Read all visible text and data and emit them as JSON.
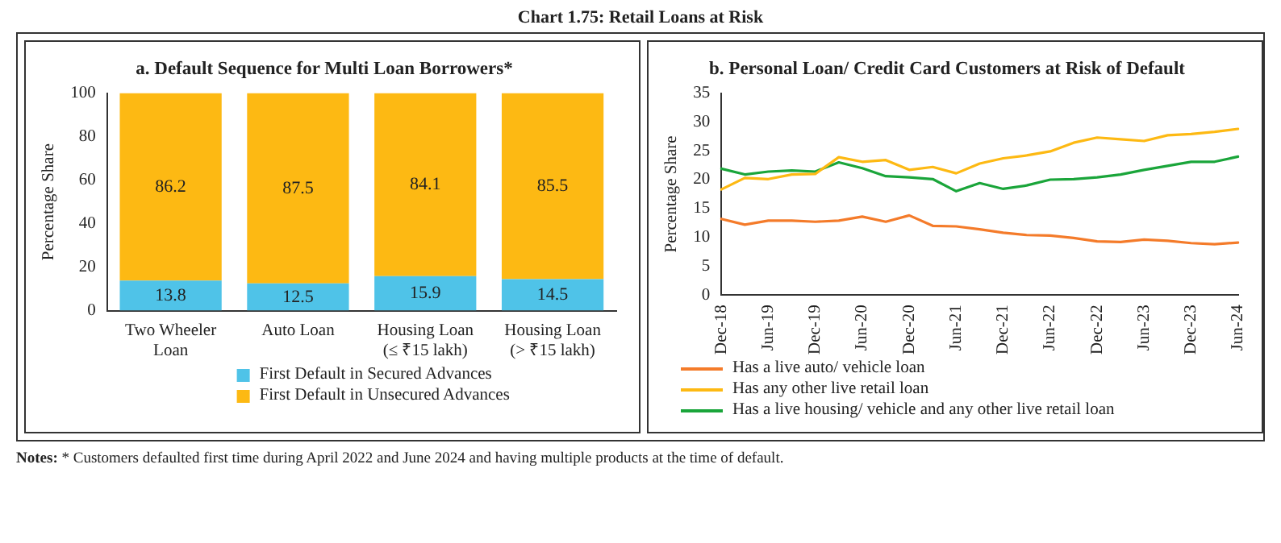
{
  "chart_data": [
    {
      "type": "bar",
      "title": "a. Default Sequence for Multi Loan Borrowers*",
      "ylabel": "Percentage Share",
      "categories": [
        "Two Wheeler\nLoan",
        "Auto Loan",
        "Housing Loan\n(≤ ₹15 lakh)",
        "Housing Loan\n(> ₹15 lakh)"
      ],
      "stacked": true,
      "data_labels": true,
      "legend": "bottom",
      "ylim": [
        0,
        100
      ],
      "yticks": [
        0,
        20,
        40,
        60,
        80,
        100
      ],
      "grid": false,
      "series": [
        {
          "name": "First Default in Secured Advances",
          "color": "#4fc3e8",
          "values": [
            13.8,
            12.5,
            15.9,
            14.5
          ]
        },
        {
          "name": "First Default in Unsecured Advances",
          "color": "#fdb913",
          "values": [
            86.2,
            87.5,
            84.1,
            85.5
          ]
        }
      ],
      "annotations": [
        "Chart 1.75: Retail Loans at Risk"
      ]
    },
    {
      "type": "line",
      "title": "b. Personal Loan/ Credit Card Customers at Risk of Default",
      "ylabel": "Percentage Share",
      "categories": [
        "Dec-18",
        null,
        "Jun-19",
        null,
        "Dec-19",
        null,
        "Jun-20",
        null,
        "Dec-20",
        null,
        "Jun-21",
        null,
        "Dec-21",
        null,
        "Jun-22",
        null,
        "Dec-22",
        null,
        "Jun-23",
        null,
        "Dec-23",
        null,
        "Jun-24"
      ],
      "legend": "bottom left",
      "ylim": [
        0,
        35
      ],
      "yticks": [
        0,
        5,
        10,
        15,
        20,
        25,
        30,
        35
      ],
      "grid": false,
      "marker": "none",
      "series": [
        {
          "name": "Has a live auto/ vehicle loan",
          "color": "#f47b2a",
          "values": [
            13.2,
            12.2,
            12.9,
            12.9,
            12.7,
            12.9,
            13.6,
            12.7,
            13.8,
            12.0,
            11.9,
            11.4,
            10.8,
            10.4,
            10.3,
            9.9,
            9.3,
            9.2,
            9.6,
            9.4,
            9.0,
            8.8,
            9.1
          ]
        },
        {
          "name": "Has any other live retail loan",
          "color": "#fdb913",
          "values": [
            18.3,
            20.3,
            20.1,
            20.9,
            21.0,
            23.9,
            23.1,
            23.4,
            21.7,
            22.2,
            21.1,
            22.8,
            23.7,
            24.2,
            24.9,
            26.4,
            27.3,
            27.0,
            26.7,
            27.7,
            27.9,
            28.3,
            28.8
          ]
        },
        {
          "name": "Has a live housing/ vehicle and any other live retail loan",
          "color": "#1aa53a",
          "values": [
            21.9,
            20.9,
            21.4,
            21.6,
            21.4,
            23.0,
            22.0,
            20.6,
            20.4,
            20.1,
            18.0,
            19.4,
            18.4,
            19.0,
            20.0,
            20.1,
            20.4,
            20.9,
            21.7,
            22.4,
            23.1,
            23.1,
            24.0
          ]
        }
      ],
      "annotations": [
        "Notes: * Customers defaulted first time during April 2022 and June 2024 and having multiple products at the time of default."
      ]
    }
  ]
}
